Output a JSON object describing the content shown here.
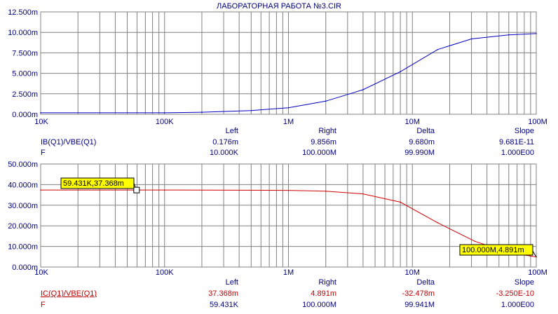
{
  "title": "ЛАБОРАТОРНАЯ РАБОТА №3.CIR",
  "colors": {
    "series1": "#0000c0",
    "series2": "#d00000",
    "grid": "#808080",
    "text": "#000080",
    "tag": "#ffff00"
  },
  "chart_data": [
    {
      "type": "line",
      "x_scale": "log",
      "xlim": [
        "10K",
        "100M"
      ],
      "xticks": [
        "10K",
        "100K",
        "1M",
        "10M",
        "100M"
      ],
      "yticks": [
        "0.000m",
        "2.500m",
        "5.000m",
        "7.500m",
        "10.000m",
        "12.500m"
      ],
      "ylim": [
        0,
        12.5
      ],
      "grid": true,
      "series": [
        {
          "name": "IB(Q1)/VBE(Q1)",
          "x": [
            10000,
            100000,
            200000,
            500000,
            1000000,
            2000000,
            4000000,
            8000000,
            16000000,
            30000000,
            60000000,
            100000000
          ],
          "y": [
            0.176,
            0.18,
            0.25,
            0.45,
            0.8,
            1.6,
            3.0,
            5.2,
            7.9,
            9.2,
            9.7,
            9.856
          ]
        }
      ],
      "readout": {
        "headers": [
          "Left",
          "Right",
          "Delta",
          "Slope"
        ],
        "rows": [
          {
            "label": "IB(Q1)/VBE(Q1)",
            "values": [
              "0.176m",
              "9.856m",
              "9.680m",
              "9.681E-11"
            ]
          },
          {
            "label": "F",
            "values": [
              "10.000K",
              "100.000M",
              "99.990M",
              "1.000E00"
            ]
          }
        ]
      }
    },
    {
      "type": "line",
      "x_scale": "log",
      "xlim": [
        "10K",
        "100M"
      ],
      "xticks": [
        "10K",
        "100K",
        "1M",
        "10M",
        "100M"
      ],
      "yticks": [
        "0.000m",
        "10.000m",
        "20.000m",
        "30.000m",
        "40.000m",
        "50.000m"
      ],
      "ylim": [
        0,
        50
      ],
      "grid": true,
      "series": [
        {
          "name": "IC(Q1)/VBE(Q1)",
          "x": [
            10000,
            100000,
            1000000,
            2000000,
            4000000,
            8000000,
            16000000,
            32000000,
            60000000,
            100000000
          ],
          "y": [
            37.368,
            37.368,
            37.2,
            36.8,
            35.5,
            31.5,
            21.5,
            12.5,
            7.0,
            4.891
          ]
        }
      ],
      "tags": [
        {
          "text": "59.431K,37.368m",
          "x": 59431,
          "y": 37.368
        },
        {
          "text": "100.000M,4.891m",
          "x": 100000000,
          "y": 4.891
        }
      ],
      "readout": {
        "headers": [
          "Left",
          "Right",
          "Delta",
          "Slope"
        ],
        "rows": [
          {
            "label": "IC(Q1)/VBE(Q1)",
            "values": [
              "37.368m",
              "4.891m",
              "-32.478m",
              "-3.250E-10"
            ]
          },
          {
            "label": "F",
            "values": [
              "59.431K",
              "100.000M",
              "99.941M",
              "1.000E00"
            ]
          }
        ]
      }
    }
  ]
}
